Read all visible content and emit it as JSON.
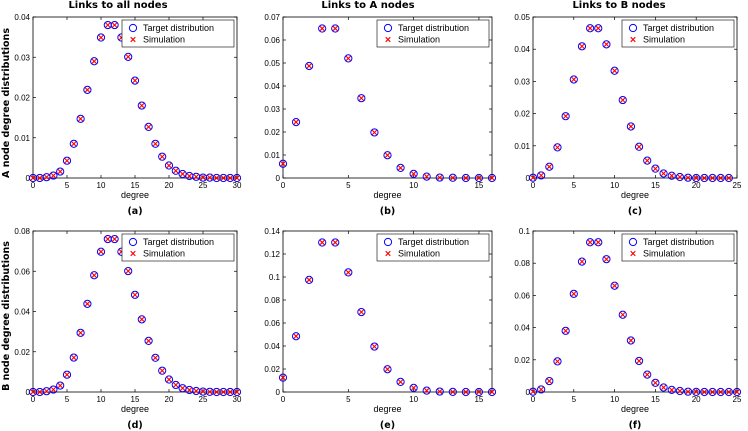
{
  "figure": {
    "column_titles": [
      "Links to all nodes",
      "Links to A nodes",
      "Links to B nodes"
    ],
    "row_labels": [
      "A node degree distributions",
      "B node degree distributions"
    ]
  },
  "legend": {
    "target_label": "Target distribution",
    "simulation_label": "Simulation"
  },
  "colors": {
    "target": "#0000ff",
    "simulation": "#ff0000",
    "axis": "#000000"
  },
  "chart_data": [
    {
      "type": "scatter",
      "panel": "(a)",
      "title": "Links to all nodes",
      "xlabel": "degree",
      "ylabel": "A node degree distributions",
      "xlim": [
        0,
        30
      ],
      "ylim": [
        0,
        0.04
      ],
      "xticks": [
        0,
        5,
        10,
        15,
        20,
        25,
        30
      ],
      "yticks": [
        0,
        0.01,
        0.02,
        0.03,
        0.04
      ],
      "ytick_labels": [
        "0",
        "0.01",
        "0.02",
        "0.03",
        "0.04"
      ],
      "legend_position": "top-right",
      "x": [
        0,
        1,
        2,
        3,
        4,
        5,
        6,
        7,
        8,
        9,
        10,
        11,
        12,
        13,
        14,
        15,
        16,
        17,
        18,
        19,
        20,
        21,
        22,
        23,
        24,
        25,
        26,
        27,
        28,
        29,
        30
      ],
      "series": [
        {
          "name": "Target distribution",
          "values": [
            0,
            0,
            0.0002,
            0.0006,
            0.0016,
            0.0043,
            0.0085,
            0.0147,
            0.0219,
            0.029,
            0.0349,
            0.038,
            0.038,
            0.0349,
            0.0301,
            0.0242,
            0.018,
            0.0127,
            0.0085,
            0.0053,
            0.0031,
            0.0018,
            0.001,
            0.0005,
            0.0003,
            0.0001,
            0.0001,
            0,
            0,
            0,
            0
          ]
        },
        {
          "name": "Simulation",
          "values": [
            0,
            0,
            0.0002,
            0.0006,
            0.0016,
            0.0043,
            0.0085,
            0.0147,
            0.0219,
            0.029,
            0.0349,
            0.038,
            0.038,
            0.0349,
            0.0301,
            0.0242,
            0.018,
            0.0127,
            0.0085,
            0.0053,
            0.0031,
            0.0018,
            0.001,
            0.0005,
            0.0003,
            0.0001,
            0.0001,
            0,
            0,
            0,
            0
          ]
        }
      ]
    },
    {
      "type": "scatter",
      "panel": "(b)",
      "title": "Links to A nodes",
      "xlabel": "degree",
      "xlim": [
        0,
        16
      ],
      "ylim": [
        0,
        0.07
      ],
      "xticks": [
        0,
        5,
        10,
        15
      ],
      "yticks": [
        0,
        0.01,
        0.02,
        0.03,
        0.04,
        0.05,
        0.06,
        0.07
      ],
      "ytick_labels": [
        "0",
        "0.01",
        "0.02",
        "0.03",
        "0.04",
        "0.05",
        "0.06",
        "0.07"
      ],
      "legend_position": "top-right",
      "x": [
        0,
        1,
        2,
        3,
        4,
        5,
        6,
        7,
        8,
        9,
        10,
        11,
        12,
        13,
        14,
        15,
        16
      ],
      "series": [
        {
          "name": "Target distribution",
          "values": [
            0.0062,
            0.0243,
            0.0487,
            0.065,
            0.065,
            0.052,
            0.0347,
            0.0198,
            0.0099,
            0.0044,
            0.0018,
            0.0006,
            0.0002,
            0.0001,
            0,
            0,
            0
          ]
        },
        {
          "name": "Simulation",
          "values": [
            0.0062,
            0.0243,
            0.0487,
            0.065,
            0.065,
            0.052,
            0.0347,
            0.0198,
            0.0099,
            0.0044,
            0.0018,
            0.0006,
            0.0002,
            0.0001,
            0,
            0,
            0
          ]
        }
      ]
    },
    {
      "type": "scatter",
      "panel": "(c)",
      "title": "Links to B nodes",
      "xlabel": "degree",
      "xlim": [
        0,
        25
      ],
      "ylim": [
        0,
        0.05
      ],
      "xticks": [
        0,
        5,
        10,
        15,
        20,
        25
      ],
      "yticks": [
        0,
        0.01,
        0.02,
        0.03,
        0.04,
        0.05
      ],
      "ytick_labels": [
        "0",
        "0.01",
        "0.02",
        "0.03",
        "0.04",
        "0.05"
      ],
      "legend_position": "top-right",
      "x": [
        0,
        1,
        2,
        3,
        4,
        5,
        6,
        7,
        8,
        9,
        10,
        11,
        12,
        13,
        14,
        15,
        16,
        17,
        18,
        19,
        20,
        21,
        22,
        23,
        24
      ],
      "series": [
        {
          "name": "Target distribution",
          "values": [
            0.0001,
            0.0008,
            0.0035,
            0.0095,
            0.0192,
            0.0306,
            0.0409,
            0.0465,
            0.0465,
            0.0415,
            0.0333,
            0.0242,
            0.016,
            0.0097,
            0.0054,
            0.0029,
            0.0014,
            0.0007,
            0.0003,
            0.0001,
            0,
            0,
            0,
            0,
            0
          ]
        },
        {
          "name": "Simulation",
          "values": [
            0.0001,
            0.0008,
            0.0035,
            0.0095,
            0.0192,
            0.0306,
            0.0409,
            0.0465,
            0.0465,
            0.0415,
            0.0333,
            0.0242,
            0.016,
            0.0097,
            0.0054,
            0.0029,
            0.0014,
            0.0007,
            0.0003,
            0.0001,
            0,
            0,
            0,
            0,
            0
          ]
        }
      ]
    },
    {
      "type": "scatter",
      "panel": "(d)",
      "xlabel": "degree",
      "ylabel": "B node degree distributions",
      "xlim": [
        0,
        30
      ],
      "ylim": [
        0,
        0.08
      ],
      "xticks": [
        0,
        5,
        10,
        15,
        20,
        25,
        30
      ],
      "yticks": [
        0,
        0.02,
        0.04,
        0.06,
        0.08
      ],
      "ytick_labels": [
        "0",
        "0.02",
        "0.04",
        "0.06",
        "0.08"
      ],
      "legend_position": "top-right",
      "x": [
        0,
        1,
        2,
        3,
        4,
        5,
        6,
        7,
        8,
        9,
        10,
        11,
        12,
        13,
        14,
        15,
        16,
        17,
        18,
        19,
        20,
        21,
        22,
        23,
        24,
        25,
        26,
        27,
        28,
        29,
        30
      ],
      "series": [
        {
          "name": "Target distribution",
          "values": [
            0,
            0,
            0.0004,
            0.0012,
            0.0032,
            0.0086,
            0.0171,
            0.0294,
            0.0438,
            0.058,
            0.0697,
            0.076,
            0.076,
            0.0697,
            0.0601,
            0.0483,
            0.0361,
            0.0254,
            0.017,
            0.0106,
            0.0062,
            0.0035,
            0.0019,
            0.001,
            0.0005,
            0.0002,
            0.0001,
            0,
            0,
            0,
            0
          ]
        },
        {
          "name": "Simulation",
          "values": [
            0,
            0,
            0.0004,
            0.0012,
            0.0032,
            0.0086,
            0.0171,
            0.0294,
            0.0438,
            0.058,
            0.0697,
            0.076,
            0.076,
            0.0697,
            0.0601,
            0.0483,
            0.0361,
            0.0254,
            0.017,
            0.0106,
            0.0062,
            0.0035,
            0.0019,
            0.001,
            0.0005,
            0.0002,
            0.0001,
            0,
            0,
            0,
            0
          ]
        }
      ]
    },
    {
      "type": "scatter",
      "panel": "(e)",
      "xlabel": "degree",
      "xlim": [
        0,
        16
      ],
      "ylim": [
        0,
        0.14
      ],
      "xticks": [
        0,
        5,
        10,
        15
      ],
      "yticks": [
        0,
        0.02,
        0.04,
        0.06,
        0.08,
        0.1,
        0.12,
        0.14
      ],
      "ytick_labels": [
        "0",
        "0.02",
        "0.04",
        "0.06",
        "0.08",
        "0.1",
        "0.12",
        "0.14"
      ],
      "legend_position": "top-right",
      "x": [
        0,
        1,
        2,
        3,
        4,
        5,
        6,
        7,
        8,
        9,
        10,
        11,
        12,
        13,
        14,
        15,
        16
      ],
      "series": [
        {
          "name": "Target distribution",
          "values": [
            0.0125,
            0.0485,
            0.0975,
            0.13,
            0.13,
            0.104,
            0.0695,
            0.0395,
            0.0198,
            0.0088,
            0.0036,
            0.0012,
            0.0004,
            0.0001,
            0,
            0,
            0
          ]
        },
        {
          "name": "Simulation",
          "values": [
            0.0125,
            0.0485,
            0.0975,
            0.13,
            0.13,
            0.104,
            0.0695,
            0.0395,
            0.0198,
            0.0088,
            0.0036,
            0.0012,
            0.0004,
            0.0001,
            0,
            0,
            0
          ]
        }
      ]
    },
    {
      "type": "scatter",
      "panel": "(f)",
      "xlabel": "degree",
      "xlim": [
        0,
        25
      ],
      "ylim": [
        0,
        0.1
      ],
      "xticks": [
        0,
        5,
        10,
        15,
        20,
        25
      ],
      "yticks": [
        0,
        0.02,
        0.04,
        0.06,
        0.08,
        0.1
      ],
      "ytick_labels": [
        "0",
        "0.02",
        "0.04",
        "0.06",
        "0.08",
        "0.1"
      ],
      "legend_position": "top-right",
      "x": [
        0,
        1,
        2,
        3,
        4,
        5,
        6,
        7,
        8,
        9,
        10,
        11,
        12,
        13,
        14,
        15,
        16,
        17,
        18,
        19,
        20,
        21,
        22,
        23,
        24,
        25
      ],
      "series": [
        {
          "name": "Target distribution",
          "values": [
            0.0002,
            0.0016,
            0.0068,
            0.019,
            0.038,
            0.061,
            0.081,
            0.093,
            0.093,
            0.0825,
            0.066,
            0.048,
            0.032,
            0.0193,
            0.0108,
            0.0057,
            0.0028,
            0.0013,
            0.0006,
            0.0002,
            0.0001,
            0,
            0,
            0,
            0,
            0
          ]
        },
        {
          "name": "Simulation",
          "values": [
            0.0002,
            0.0016,
            0.0068,
            0.019,
            0.038,
            0.061,
            0.081,
            0.093,
            0.093,
            0.0825,
            0.066,
            0.048,
            0.032,
            0.0193,
            0.0108,
            0.0057,
            0.0028,
            0.0013,
            0.0006,
            0.0002,
            0.0001,
            0,
            0,
            0,
            0,
            0
          ]
        }
      ]
    }
  ]
}
